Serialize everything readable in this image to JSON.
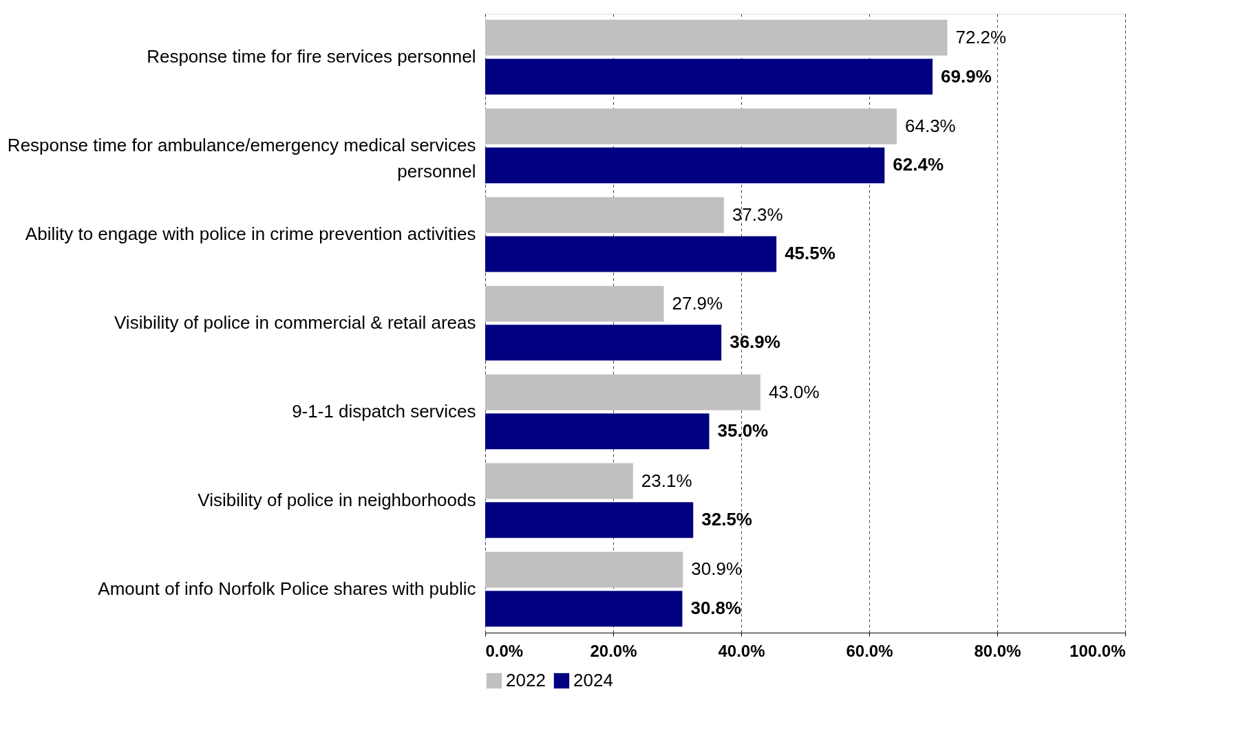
{
  "chart_data": {
    "type": "bar",
    "orientation": "horizontal",
    "categories": [
      "Response time for fire services personnel",
      "Response time for ambulance/emergency medical services personnel",
      "Ability to engage with police in crime prevention activities",
      "Visibility of police in commercial & retail areas",
      "9-1-1 dispatch services",
      "Visibility of police in neighborhoods",
      "Amount of info Norfolk Police shares with public"
    ],
    "series": [
      {
        "name": "2022",
        "color": "#c0c0c0",
        "values": [
          72.2,
          64.3,
          37.3,
          27.9,
          43.0,
          23.1,
          30.9
        ],
        "value_labels": [
          "72.2%",
          "64.3%",
          "37.3%",
          "27.9%",
          "43.0%",
          "23.1%",
          "30.9%"
        ]
      },
      {
        "name": "2024",
        "color": "#000080",
        "values": [
          69.9,
          62.4,
          45.5,
          36.9,
          35.0,
          32.5,
          30.8
        ],
        "value_labels": [
          "69.9%",
          "62.4%",
          "45.5%",
          "36.9%",
          "35.0%",
          "32.5%",
          "30.8%"
        ]
      }
    ],
    "xlim": [
      0,
      100
    ],
    "xticks": [
      {
        "value": 0,
        "label": "0.0%"
      },
      {
        "value": 20,
        "label": "20.0%"
      },
      {
        "value": 40,
        "label": "40.0%"
      },
      {
        "value": 60,
        "label": "60.0%"
      },
      {
        "value": 80,
        "label": "80.0%"
      },
      {
        "value": 100,
        "label": "100.0%"
      }
    ],
    "grid": "x",
    "legend": "bottom"
  }
}
